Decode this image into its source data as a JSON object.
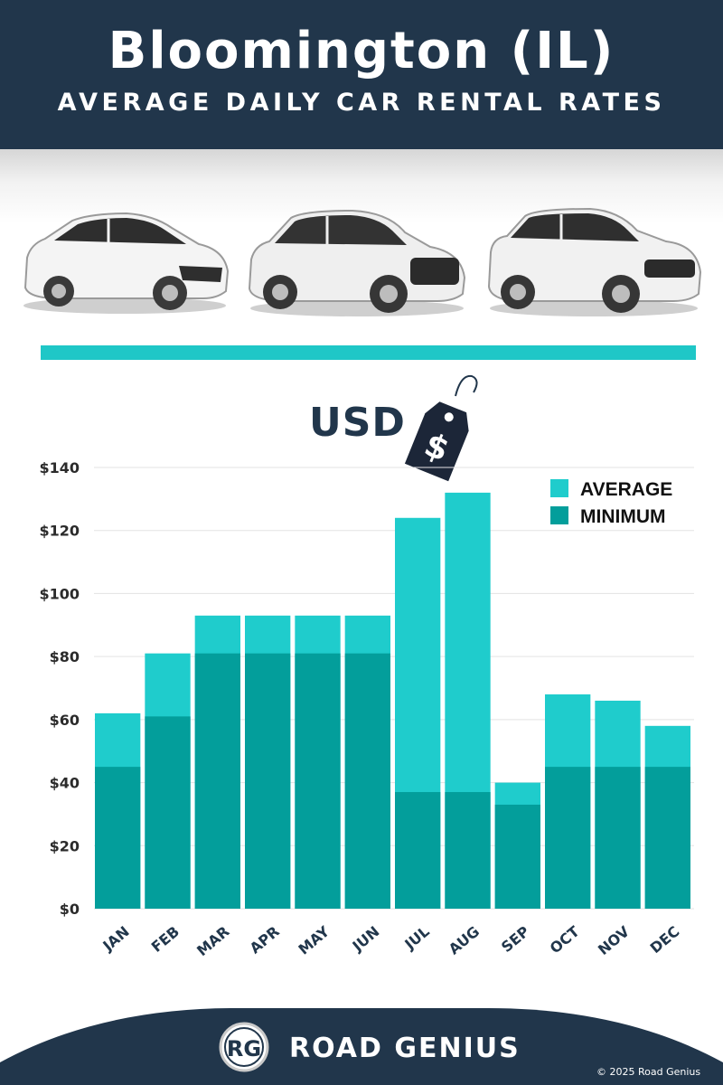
{
  "header": {
    "title": "Bloomington (IL)",
    "subtitle": "AVERAGE DAILY CAR RENTAL RATES"
  },
  "currency": {
    "label": "USD",
    "tag_symbol": "$"
  },
  "chart_data": {
    "type": "bar",
    "stacked": "overlay",
    "categories": [
      "JAN",
      "FEB",
      "MAR",
      "APR",
      "MAY",
      "JUN",
      "JUL",
      "AUG",
      "SEP",
      "OCT",
      "NOV",
      "DEC"
    ],
    "series": [
      {
        "name": "AVERAGE",
        "color": "#1fcccc",
        "values": [
          62,
          81,
          93,
          93,
          93,
          93,
          124,
          132,
          40,
          68,
          66,
          58
        ]
      },
      {
        "name": "MINIMUM",
        "color": "#039e9b",
        "values": [
          45,
          61,
          81,
          81,
          81,
          81,
          37,
          37,
          33,
          45,
          45,
          45
        ]
      }
    ],
    "y_ticks": [
      "$0",
      "$20",
      "$40",
      "$60",
      "$80",
      "$100",
      "$120",
      "$140"
    ],
    "ylim": [
      0,
      140
    ],
    "grid": true,
    "legend": "top-right"
  },
  "footer": {
    "logo_text": "RG",
    "brand": "ROAD GENIUS",
    "copyright": "© 2025 Road Genius"
  }
}
